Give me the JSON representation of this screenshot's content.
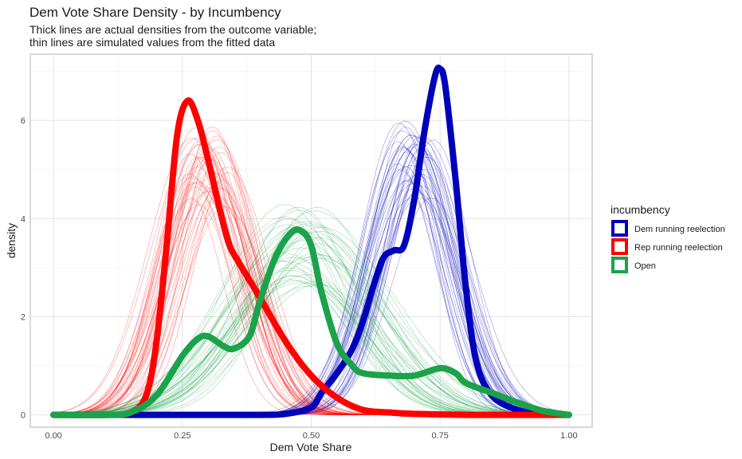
{
  "chart_data": {
    "type": "line",
    "title": "Dem Vote Share Density - by Incumbency",
    "subtitle_lines": [
      "Thick lines are actual densities from the outcome variable;",
      "thin lines are simulated values from the fitted data"
    ],
    "xlabel": "Dem Vote Share",
    "ylabel": "density",
    "xlim": [
      -0.045,
      1.045
    ],
    "ylim": [
      -0.25,
      7.35
    ],
    "x_ticks": [
      0.0,
      0.25,
      0.5,
      0.75,
      1.0
    ],
    "x_tick_labels": [
      "0.00",
      "0.25",
      "0.50",
      "0.75",
      "1.00"
    ],
    "y_ticks": [
      0,
      2,
      4,
      6
    ],
    "y_tick_labels": [
      "0",
      "2",
      "4",
      "6"
    ],
    "grid": true,
    "legend": {
      "title": "incumbency",
      "position": "right",
      "entries": [
        "Dem running reelection",
        "Rep running reelection",
        "Open"
      ]
    },
    "series": [
      {
        "name": "Dem running reelection",
        "color": "#0000bb",
        "x": [
          0.0,
          0.1,
          0.2,
          0.3,
          0.4,
          0.45,
          0.5,
          0.52,
          0.55,
          0.58,
          0.6,
          0.62,
          0.64,
          0.66,
          0.68,
          0.7,
          0.72,
          0.74,
          0.75,
          0.76,
          0.78,
          0.8,
          0.82,
          0.85,
          0.9,
          0.95,
          1.0
        ],
        "values": [
          0,
          0,
          0,
          0,
          0,
          0.02,
          0.15,
          0.45,
          0.85,
          1.35,
          1.9,
          2.6,
          3.2,
          3.35,
          3.45,
          4.4,
          5.8,
          6.9,
          7.05,
          6.7,
          4.8,
          2.6,
          1.1,
          0.4,
          0.1,
          0.02,
          0
        ]
      },
      {
        "name": "Rep running reelection",
        "color": "#ff0000",
        "x": [
          0.0,
          0.1,
          0.15,
          0.18,
          0.2,
          0.22,
          0.24,
          0.26,
          0.28,
          0.3,
          0.32,
          0.34,
          0.36,
          0.4,
          0.45,
          0.5,
          0.55,
          0.6,
          0.65,
          0.7,
          0.8,
          0.9,
          1.0
        ],
        "values": [
          0,
          0,
          0.05,
          0.4,
          1.5,
          3.5,
          5.7,
          6.4,
          6.0,
          5.2,
          4.3,
          3.5,
          3.1,
          2.4,
          1.5,
          0.8,
          0.35,
          0.1,
          0.05,
          0.02,
          0,
          0,
          0
        ]
      },
      {
        "name": "Open",
        "color": "#1aa34a",
        "x": [
          0.0,
          0.1,
          0.15,
          0.2,
          0.25,
          0.28,
          0.3,
          0.33,
          0.35,
          0.38,
          0.4,
          0.43,
          0.46,
          0.48,
          0.5,
          0.52,
          0.55,
          0.58,
          0.6,
          0.65,
          0.7,
          0.75,
          0.78,
          0.8,
          0.85,
          0.9,
          0.95,
          1.0
        ],
        "values": [
          0,
          0,
          0.05,
          0.4,
          1.2,
          1.55,
          1.6,
          1.4,
          1.35,
          1.6,
          2.3,
          3.2,
          3.7,
          3.75,
          3.45,
          2.5,
          1.45,
          1.0,
          0.85,
          0.8,
          0.8,
          0.95,
          0.85,
          0.65,
          0.45,
          0.25,
          0.08,
          0
        ]
      }
    ],
    "simulated_series": [
      {
        "name": "Dem running reelection",
        "color": "#0000bb",
        "mean": 0.7,
        "sd": 0.075,
        "peak_range": [
          4.4,
          6.0
        ],
        "count": 40
      },
      {
        "name": "Rep running reelection",
        "color": "#ff0000",
        "mean": 0.3,
        "sd": 0.075,
        "peak_range": [
          4.2,
          6.0
        ],
        "count": 40
      },
      {
        "name": "Open",
        "color": "#1aa34a",
        "mean": 0.48,
        "sd": 0.13,
        "peak_range": [
          2.6,
          4.3
        ],
        "count": 40
      }
    ]
  }
}
